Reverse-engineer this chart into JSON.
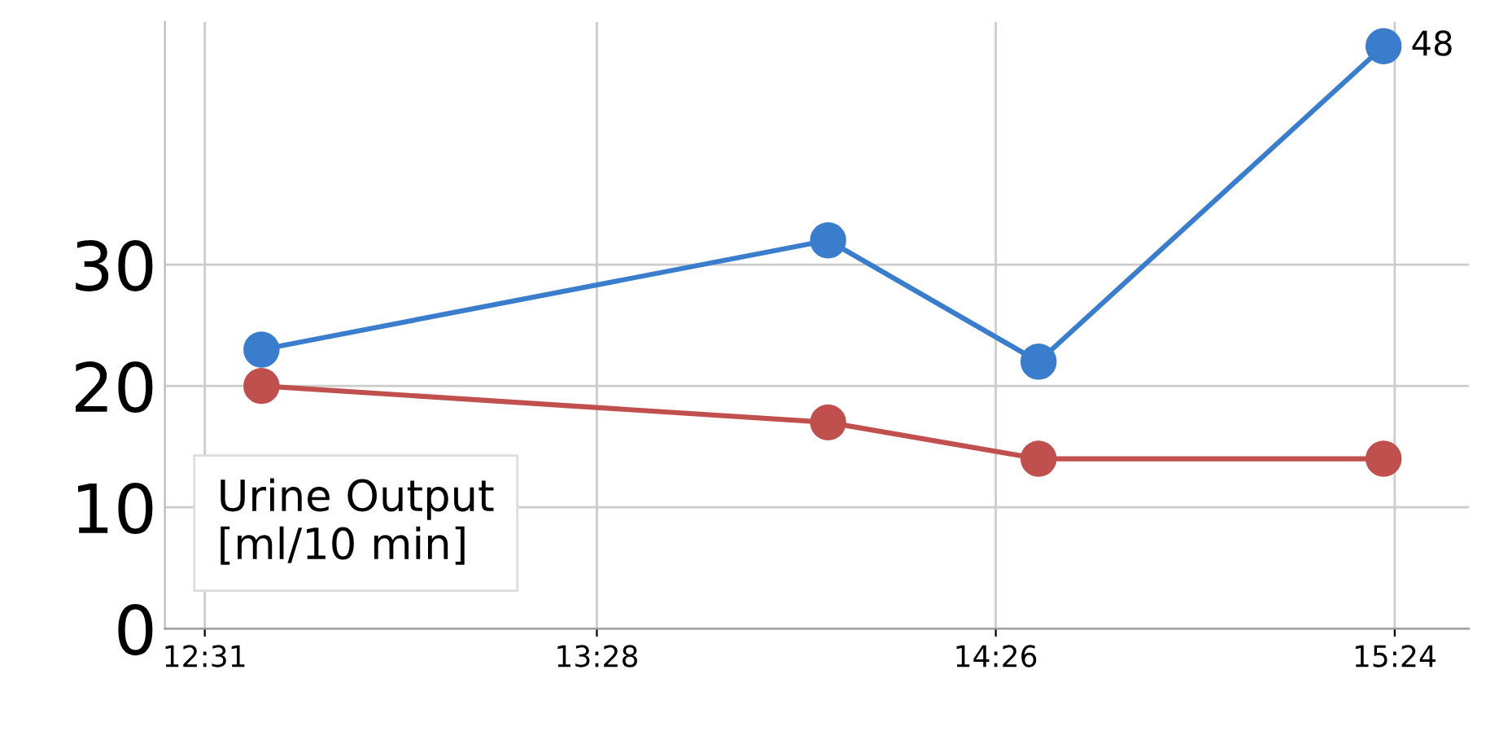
{
  "chart_data": {
    "type": "line",
    "x": [
      12.654,
      14.027,
      14.537,
      15.373
    ],
    "series": [
      {
        "color": "#3a7dcc",
        "values": [
          23,
          32,
          22,
          48
        ],
        "value_labels": [
          null,
          null,
          null,
          "48"
        ]
      },
      {
        "color": "#c0504d",
        "values": [
          20,
          17,
          14,
          14
        ]
      }
    ],
    "xlim": [
      12.42,
      15.58
    ],
    "xticks": [
      {
        "value": 12.5167,
        "label": "12:31"
      },
      {
        "value": 13.4667,
        "label": "13:28"
      },
      {
        "value": 14.4333,
        "label": "14:26"
      },
      {
        "value": 15.4,
        "label": "15:24"
      }
    ],
    "ylim": [
      0,
      50
    ],
    "yticks": [
      0,
      10,
      20,
      30
    ],
    "grid": true,
    "marker": "circle",
    "line_style": "solid",
    "legend": false,
    "annotations": [
      "Urine Output\n[ml/10 min]"
    ]
  }
}
